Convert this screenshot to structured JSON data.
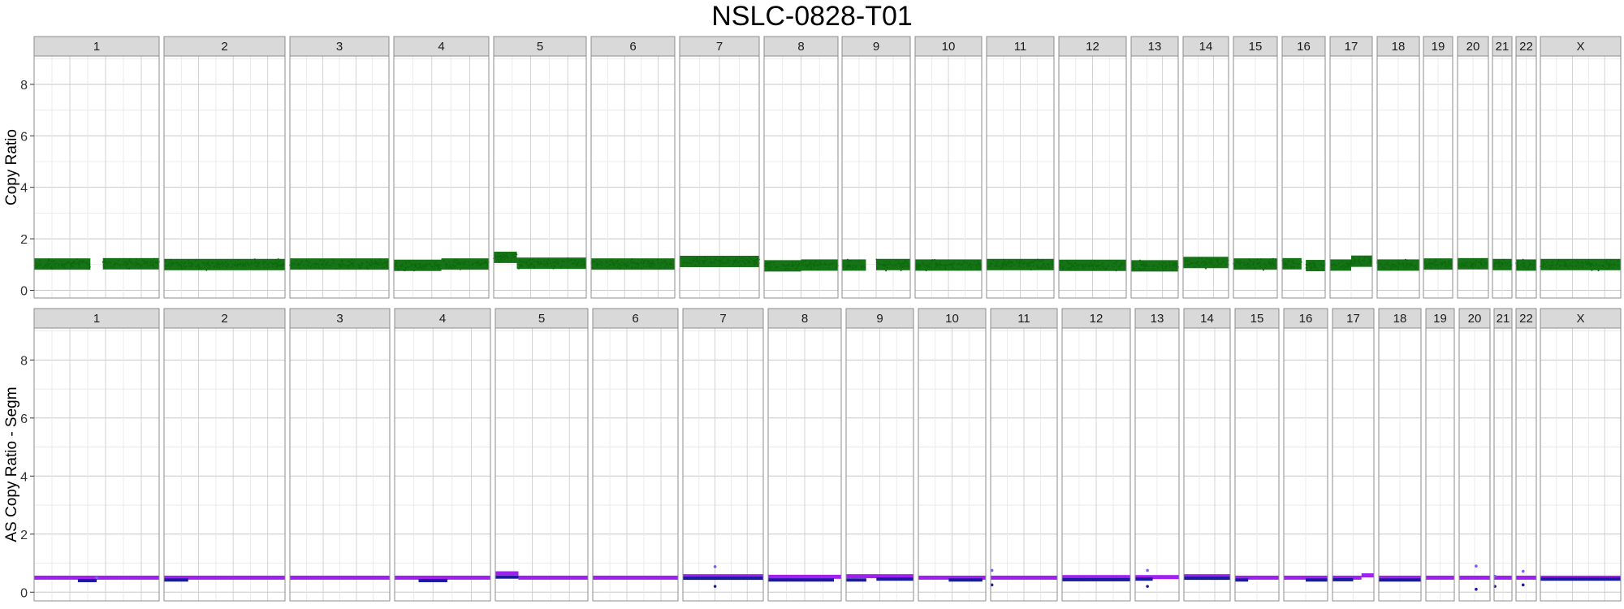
{
  "title": "NSLC-0828-T01",
  "colors": {
    "panel_bg": "#ffffff",
    "panel_border": "#8c8c8c",
    "strip_bg": "#d9d9d9",
    "grid_major": "#c8c8c8",
    "grid_minor": "#e6e6e6",
    "copy_ratio_points": "#0b6b0b",
    "as_major_segment": "#a020f0",
    "as_minor_segment": "#1a1aa0",
    "as_outlier_point": "#7b5cff"
  },
  "chart_data": [
    {
      "type": "scatter",
      "title": "NSLC-0828-T01",
      "ylabel": "Copy Ratio",
      "xlabel": "",
      "ylim": [
        -0.3,
        9.1
      ],
      "yticks": [
        0,
        2,
        4,
        6,
        8
      ],
      "grid": true,
      "facets": [
        "1",
        "2",
        "3",
        "4",
        "5",
        "6",
        "7",
        "8",
        "9",
        "10",
        "11",
        "12",
        "13",
        "14",
        "15",
        "16",
        "17",
        "18",
        "19",
        "20",
        "21",
        "22",
        "X"
      ],
      "segments": [
        {
          "chromosome": "1",
          "start": 0.0,
          "end": 0.45,
          "copy_ratio": 1.02
        },
        {
          "chromosome": "1",
          "start": 0.55,
          "end": 1.0,
          "copy_ratio": 1.03
        },
        {
          "chromosome": "2",
          "start": 0.0,
          "end": 1.0,
          "copy_ratio": 1.0
        },
        {
          "chromosome": "3",
          "start": 0.0,
          "end": 1.0,
          "copy_ratio": 1.02
        },
        {
          "chromosome": "4",
          "start": 0.0,
          "end": 0.5,
          "copy_ratio": 0.97
        },
        {
          "chromosome": "4",
          "start": 0.5,
          "end": 1.0,
          "copy_ratio": 1.02
        },
        {
          "chromosome": "5",
          "start": 0.0,
          "end": 0.25,
          "copy_ratio": 1.28
        },
        {
          "chromosome": "5",
          "start": 0.25,
          "end": 1.0,
          "copy_ratio": 1.05
        },
        {
          "chromosome": "6",
          "start": 0.0,
          "end": 1.0,
          "copy_ratio": 1.02
        },
        {
          "chromosome": "7",
          "start": 0.0,
          "end": 1.0,
          "copy_ratio": 1.12
        },
        {
          "chromosome": "8",
          "start": 0.0,
          "end": 0.5,
          "copy_ratio": 0.95
        },
        {
          "chromosome": "8",
          "start": 0.5,
          "end": 1.0,
          "copy_ratio": 0.98
        },
        {
          "chromosome": "9",
          "start": 0.0,
          "end": 0.35,
          "copy_ratio": 0.98
        },
        {
          "chromosome": "9",
          "start": 0.5,
          "end": 1.0,
          "copy_ratio": 1.0
        },
        {
          "chromosome": "10",
          "start": 0.0,
          "end": 1.0,
          "copy_ratio": 0.98
        },
        {
          "chromosome": "11",
          "start": 0.0,
          "end": 1.0,
          "copy_ratio": 1.0
        },
        {
          "chromosome": "12",
          "start": 0.0,
          "end": 1.0,
          "copy_ratio": 0.97
        },
        {
          "chromosome": "13",
          "start": 0.0,
          "end": 1.0,
          "copy_ratio": 0.95
        },
        {
          "chromosome": "14",
          "start": 0.0,
          "end": 1.0,
          "copy_ratio": 1.08
        },
        {
          "chromosome": "15",
          "start": 0.0,
          "end": 1.0,
          "copy_ratio": 1.02
        },
        {
          "chromosome": "16",
          "start": 0.0,
          "end": 0.45,
          "copy_ratio": 1.03
        },
        {
          "chromosome": "16",
          "start": 0.55,
          "end": 1.0,
          "copy_ratio": 0.96
        },
        {
          "chromosome": "17",
          "start": 0.0,
          "end": 0.5,
          "copy_ratio": 0.98
        },
        {
          "chromosome": "17",
          "start": 0.5,
          "end": 1.0,
          "copy_ratio": 1.13
        },
        {
          "chromosome": "18",
          "start": 0.0,
          "end": 1.0,
          "copy_ratio": 0.98
        },
        {
          "chromosome": "19",
          "start": 0.0,
          "end": 1.0,
          "copy_ratio": 1.02
        },
        {
          "chromosome": "20",
          "start": 0.0,
          "end": 1.0,
          "copy_ratio": 1.03
        },
        {
          "chromosome": "21",
          "start": 0.0,
          "end": 1.0,
          "copy_ratio": 1.0
        },
        {
          "chromosome": "22",
          "start": 0.0,
          "end": 1.0,
          "copy_ratio": 0.98
        },
        {
          "chromosome": "X",
          "start": 0.0,
          "end": 1.0,
          "copy_ratio": 1.0
        }
      ]
    },
    {
      "type": "scatter",
      "ylabel": "AS Copy Ratio - Segm",
      "xlabel": "",
      "ylim": [
        -0.3,
        9.1
      ],
      "yticks": [
        0,
        2,
        4,
        6,
        8
      ],
      "grid": true,
      "facets": [
        "1",
        "2",
        "3",
        "4",
        "5",
        "6",
        "7",
        "8",
        "9",
        "10",
        "11",
        "12",
        "13",
        "14",
        "15",
        "16",
        "17",
        "18",
        "19",
        "20",
        "21",
        "22",
        "X"
      ],
      "series": [
        {
          "values": [
            {
              "chromosome": "1",
              "start": 0.0,
              "end": 1.0,
              "y": 0.5
            },
            {
              "chromosome": "2",
              "start": 0.0,
              "end": 1.0,
              "y": 0.5
            },
            {
              "chromosome": "3",
              "start": 0.0,
              "end": 1.0,
              "y": 0.5
            },
            {
              "chromosome": "4",
              "start": 0.0,
              "end": 1.0,
              "y": 0.5
            },
            {
              "chromosome": "5",
              "start": 0.0,
              "end": 0.25,
              "y": 0.65
            },
            {
              "chromosome": "5",
              "start": 0.25,
              "end": 1.0,
              "y": 0.5
            },
            {
              "chromosome": "6",
              "start": 0.0,
              "end": 1.0,
              "y": 0.5
            },
            {
              "chromosome": "7",
              "start": 0.0,
              "end": 1.0,
              "y": 0.55
            },
            {
              "chromosome": "8",
              "start": 0.0,
              "end": 1.0,
              "y": 0.53
            },
            {
              "chromosome": "9",
              "start": 0.0,
              "end": 1.0,
              "y": 0.55
            },
            {
              "chromosome": "10",
              "start": 0.0,
              "end": 1.0,
              "y": 0.5
            },
            {
              "chromosome": "11",
              "start": 0.0,
              "end": 1.0,
              "y": 0.5
            },
            {
              "chromosome": "12",
              "start": 0.0,
              "end": 1.0,
              "y": 0.52
            },
            {
              "chromosome": "13",
              "start": 0.0,
              "end": 1.0,
              "y": 0.52
            },
            {
              "chromosome": "14",
              "start": 0.0,
              "end": 1.0,
              "y": 0.55
            },
            {
              "chromosome": "15",
              "start": 0.0,
              "end": 1.0,
              "y": 0.5
            },
            {
              "chromosome": "16",
              "start": 0.0,
              "end": 1.0,
              "y": 0.5
            },
            {
              "chromosome": "17",
              "start": 0.0,
              "end": 0.7,
              "y": 0.5
            },
            {
              "chromosome": "17",
              "start": 0.7,
              "end": 1.0,
              "y": 0.58
            },
            {
              "chromosome": "18",
              "start": 0.0,
              "end": 1.0,
              "y": 0.5
            },
            {
              "chromosome": "19",
              "start": 0.0,
              "end": 1.0,
              "y": 0.5
            },
            {
              "chromosome": "20",
              "start": 0.0,
              "end": 1.0,
              "y": 0.5
            },
            {
              "chromosome": "21",
              "start": 0.0,
              "end": 1.0,
              "y": 0.5
            },
            {
              "chromosome": "22",
              "start": 0.0,
              "end": 1.0,
              "y": 0.5
            },
            {
              "chromosome": "X",
              "start": 0.0,
              "end": 1.0,
              "y": 0.5
            }
          ]
        },
        {
          "values": [
            {
              "chromosome": "1",
              "start": 0.35,
              "end": 0.5,
              "y": 0.4
            },
            {
              "chromosome": "2",
              "start": 0.0,
              "end": 0.2,
              "y": 0.42
            },
            {
              "chromosome": "4",
              "start": 0.25,
              "end": 0.55,
              "y": 0.4
            },
            {
              "chromosome": "5",
              "start": 0.0,
              "end": 0.25,
              "y": 0.52
            },
            {
              "chromosome": "7",
              "start": 0.0,
              "end": 1.0,
              "y": 0.48
            },
            {
              "chromosome": "8",
              "start": 0.0,
              "end": 0.9,
              "y": 0.42
            },
            {
              "chromosome": "9",
              "start": 0.0,
              "end": 0.3,
              "y": 0.42
            },
            {
              "chromosome": "9",
              "start": 0.45,
              "end": 1.0,
              "y": 0.45
            },
            {
              "chromosome": "10",
              "start": 0.45,
              "end": 0.95,
              "y": 0.42
            },
            {
              "chromosome": "12",
              "start": 0.0,
              "end": 1.0,
              "y": 0.43
            },
            {
              "chromosome": "13",
              "start": 0.0,
              "end": 0.4,
              "y": 0.45
            },
            {
              "chromosome": "14",
              "start": 0.0,
              "end": 1.0,
              "y": 0.48
            },
            {
              "chromosome": "15",
              "start": 0.0,
              "end": 0.3,
              "y": 0.42
            },
            {
              "chromosome": "16",
              "start": 0.5,
              "end": 1.0,
              "y": 0.42
            },
            {
              "chromosome": "17",
              "start": 0.0,
              "end": 0.5,
              "y": 0.43
            },
            {
              "chromosome": "18",
              "start": 0.0,
              "end": 1.0,
              "y": 0.42
            },
            {
              "chromosome": "X",
              "start": 0.0,
              "end": 1.0,
              "y": 0.45
            }
          ]
        },
        {
          "values": [
            {
              "chromosome": "1",
              "pos": 0.5,
              "y": 0.5
            },
            {
              "chromosome": "7",
              "pos": 0.4,
              "y": 0.88
            },
            {
              "chromosome": "7",
              "pos": 0.4,
              "y": 0.2
            },
            {
              "chromosome": "11",
              "pos": 0.02,
              "y": 0.75
            },
            {
              "chromosome": "11",
              "pos": 0.02,
              "y": 0.25
            },
            {
              "chromosome": "13",
              "pos": 0.28,
              "y": 0.75
            },
            {
              "chromosome": "13",
              "pos": 0.28,
              "y": 0.2
            },
            {
              "chromosome": "20",
              "pos": 0.55,
              "y": 0.9
            },
            {
              "chromosome": "20",
              "pos": 0.55,
              "y": 0.1
            },
            {
              "chromosome": "21",
              "pos": 0.05,
              "y": 0.55
            },
            {
              "chromosome": "21",
              "pos": 0.05,
              "y": 0.2
            },
            {
              "chromosome": "22",
              "pos": 0.35,
              "y": 0.72
            },
            {
              "chromosome": "22",
              "pos": 0.35,
              "y": 0.25
            }
          ]
        }
      ]
    }
  ]
}
